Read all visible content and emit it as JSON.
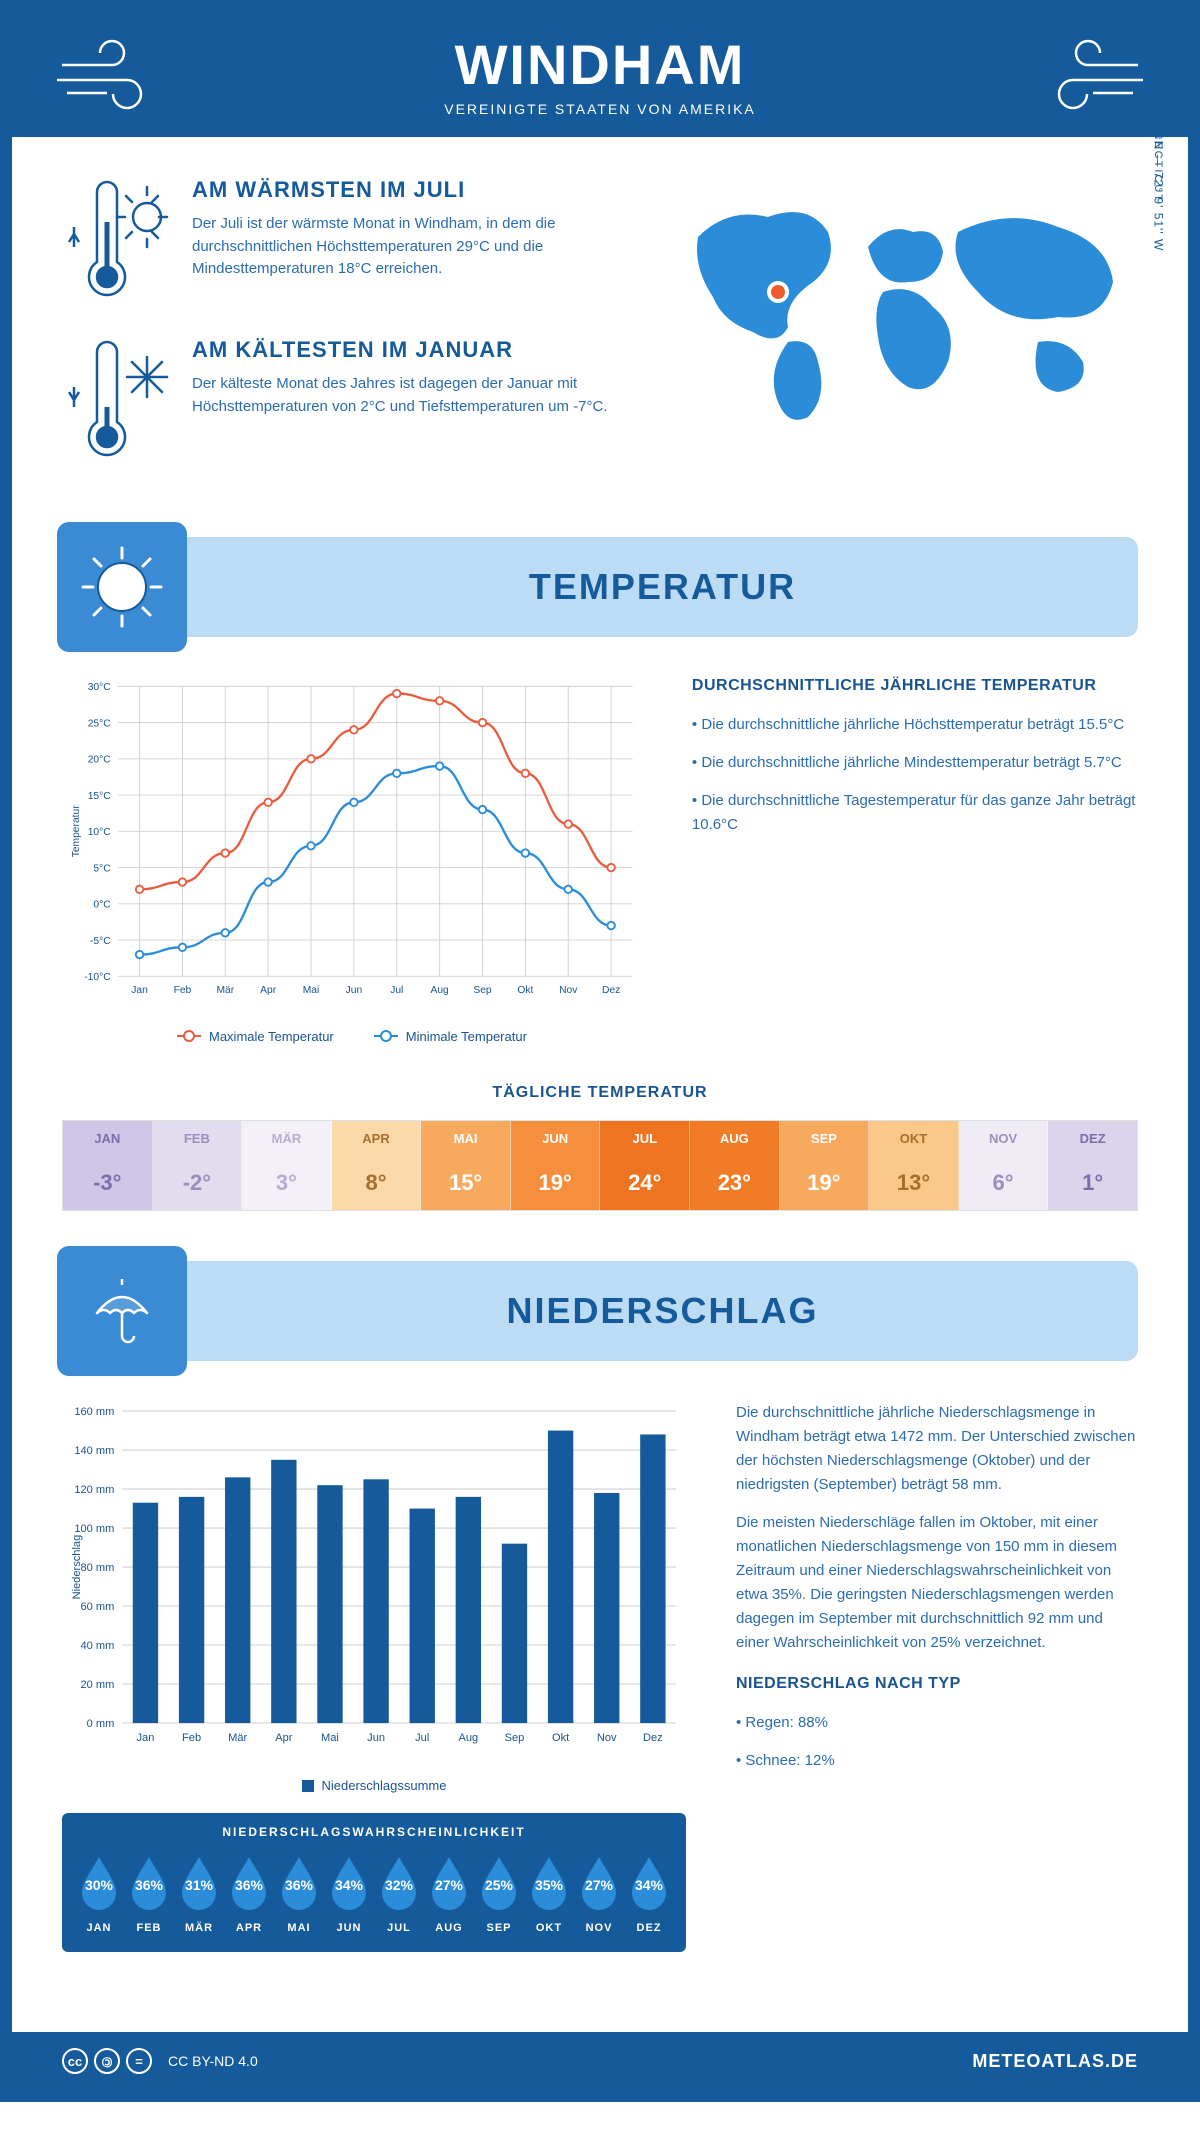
{
  "header": {
    "title": "WINDHAM",
    "subtitle": "VEREINIGTE STAATEN VON AMERIKA"
  },
  "location": {
    "coordinates": "41° 42' 23'' N — 72° 9' 51'' W",
    "region": "CONNECTICUT"
  },
  "warmest": {
    "title": "AM WÄRMSTEN IM JULI",
    "text": "Der Juli ist der wärmste Monat in Windham, in dem die durchschnittlichen Höchsttemperaturen 29°C und die Mindesttemperaturen 18°C erreichen."
  },
  "coldest": {
    "title": "AM KÄLTESTEN IM JANUAR",
    "text": "Der kälteste Monat des Jahres ist dagegen der Januar mit Höchsttemperaturen von 2°C und Tiefsttemperaturen um -7°C."
  },
  "temp_section": {
    "title": "TEMPERATUR",
    "chart": {
      "months": [
        "Jan",
        "Feb",
        "Mär",
        "Apr",
        "Mai",
        "Jun",
        "Jul",
        "Aug",
        "Sep",
        "Okt",
        "Nov",
        "Dez"
      ],
      "max_values": [
        2,
        3,
        7,
        14,
        20,
        24,
        29,
        28,
        25,
        18,
        11,
        5
      ],
      "min_values": [
        -7,
        -6,
        -4,
        3,
        8,
        14,
        18,
        19,
        13,
        7,
        2,
        -3
      ],
      "max_color": "#e85d3d",
      "min_color": "#2b8cd9",
      "grid_color": "#d0d0d0",
      "ylabel": "Temperatur",
      "ylim": [
        -10,
        30
      ],
      "ytick_step": 5,
      "y_suffix": "°C",
      "legend_max": "Maximale Temperatur",
      "legend_min": "Minimale Temperatur"
    },
    "info_title": "DURCHSCHNITTLICHE JÄHRLICHE TEMPERATUR",
    "info_items": [
      "Die durchschnittliche jährliche Höchsttemperatur beträgt 15.5°C",
      "Die durchschnittliche jährliche Mindesttemperatur beträgt 5.7°C",
      "Die durchschnittliche Tagestemperatur für das ganze Jahr beträgt 10.6°C"
    ],
    "daily_title": "TÄGLICHE TEMPERATUR",
    "daily": {
      "months": [
        "JAN",
        "FEB",
        "MÄR",
        "APR",
        "MAI",
        "JUN",
        "JUL",
        "AUG",
        "SEP",
        "OKT",
        "NOV",
        "DEZ"
      ],
      "values": [
        "-3°",
        "-2°",
        "3°",
        "8°",
        "15°",
        "19°",
        "24°",
        "23°",
        "19°",
        "13°",
        "6°",
        "1°"
      ],
      "colors": [
        "#cfc6e8",
        "#e2dcef",
        "#f3f0f8",
        "#fbd9a8",
        "#f7a95e",
        "#f58f3c",
        "#ee7421",
        "#f07c28",
        "#f7a95e",
        "#fac889",
        "#f0ecf5",
        "#dcd4ec"
      ],
      "text_colors": [
        "#7a6fa8",
        "#9a90bf",
        "#b5aed0",
        "#a86e2e",
        "#fff",
        "#fff",
        "#fff",
        "#fff",
        "#fff",
        "#a86e2e",
        "#9a90bf",
        "#7a6fa8"
      ]
    }
  },
  "precip_section": {
    "title": "NIEDERSCHLAG",
    "chart": {
      "months": [
        "Jan",
        "Feb",
        "Mär",
        "Apr",
        "Mai",
        "Jun",
        "Jul",
        "Aug",
        "Sep",
        "Okt",
        "Nov",
        "Dez"
      ],
      "values": [
        113,
        116,
        126,
        135,
        122,
        125,
        110,
        116,
        92,
        150,
        118,
        148
      ],
      "bar_color": "#155a9a",
      "grid_color": "#d0d0d0",
      "ylabel": "Niederschlag",
      "ylim": [
        0,
        160
      ],
      "ytick_step": 20,
      "y_suffix": " mm",
      "legend": "Niederschlagssumme"
    },
    "text1": "Die durchschnittliche jährliche Niederschlagsmenge in Windham beträgt etwa 1472 mm. Der Unterschied zwischen der höchsten Niederschlagsmenge (Oktober) und der niedrigsten (September) beträgt 58 mm.",
    "text2": "Die meisten Niederschläge fallen im Oktober, mit einer monatlichen Niederschlagsmenge von 150 mm in diesem Zeitraum und einer Niederschlagswahrscheinlichkeit von etwa 35%. Die geringsten Niederschlagsmengen werden dagegen im September mit durchschnittlich 92 mm und einer Wahrscheinlichkeit von 25% verzeichnet.",
    "type_title": "NIEDERSCHLAG NACH TYP",
    "type_items": [
      "Regen: 88%",
      "Schnee: 12%"
    ],
    "prob_title": "NIEDERSCHLAGSWAHRSCHEINLICHKEIT",
    "prob": {
      "months": [
        "JAN",
        "FEB",
        "MÄR",
        "APR",
        "MAI",
        "JUN",
        "JUL",
        "AUG",
        "SEP",
        "OKT",
        "NOV",
        "DEZ"
      ],
      "values": [
        "30%",
        "36%",
        "31%",
        "36%",
        "36%",
        "34%",
        "32%",
        "27%",
        "25%",
        "35%",
        "27%",
        "34%"
      ],
      "drop_fill": "#2b8cd9"
    }
  },
  "footer": {
    "license": "CC BY-ND 4.0",
    "brand": "METEOATLAS.DE"
  },
  "colors": {
    "primary": "#155a9a",
    "light_blue": "#bcdcf5",
    "mid_blue": "#3b8bd4"
  }
}
